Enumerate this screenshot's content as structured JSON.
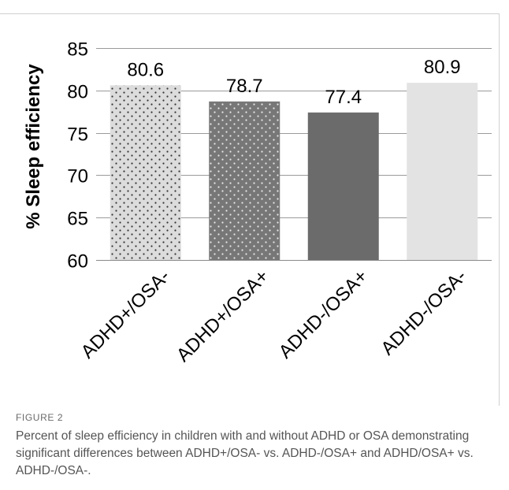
{
  "chart_data": {
    "type": "bar",
    "categories": [
      "ADHD+/OSA-",
      "ADHD+/OSA+",
      "ADHD-/OSA+",
      "ADHD-/OSA-"
    ],
    "values": [
      80.6,
      78.7,
      77.4,
      80.9
    ],
    "data_labels": [
      "80.6",
      "78.7",
      "77.4",
      "80.9"
    ],
    "ylabel": "% Sleep efficiency",
    "xlabel": "",
    "ylim": [
      60,
      85
    ],
    "yticks": [
      60,
      65,
      70,
      75,
      80,
      85
    ],
    "grid": true,
    "legend": "none",
    "bar_styles": [
      {
        "fill": "#dcdcdc",
        "pattern": "dark-dots"
      },
      {
        "fill": "#777777",
        "pattern": "light-dots"
      },
      {
        "fill": "#6b6b6b",
        "pattern": "none"
      },
      {
        "fill": "#e3e3e3",
        "pattern": "none"
      }
    ]
  },
  "figure": {
    "label": "FIGURE 2",
    "caption": "Percent of sleep efficiency in children with and without ADHD or OSA demonstrating significant differences between ADHD+/OSA- vs. ADHD-/OSA+ and ADHD/OSA+ vs. ADHD-/OSA-."
  }
}
